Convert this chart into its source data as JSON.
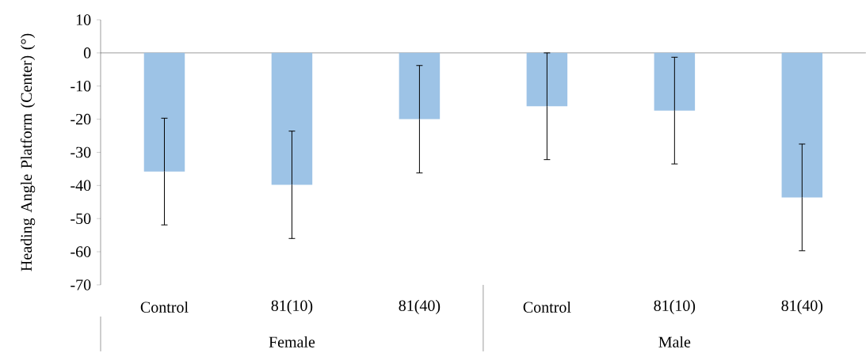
{
  "chart_data": {
    "type": "bar",
    "ylabel": "Heading Angle Platform (Center) (°)",
    "categories": [
      "Control",
      "81(10)",
      "81(40)",
      "Control",
      "81(10)",
      "81(40)"
    ],
    "values": [
      -35.8,
      -39.8,
      -20,
      -16.1,
      -17.4,
      -43.6
    ],
    "errors": [
      16.1,
      16.2,
      16.2,
      16.1,
      16.1,
      16.1
    ],
    "color": "#9dc3e6",
    "ylim": [
      -70,
      10
    ],
    "yticks": [
      -70,
      -60,
      -50,
      -40,
      -30,
      -20,
      -10,
      0,
      10
    ],
    "annotations": [
      "Female",
      "Male"
    ]
  }
}
